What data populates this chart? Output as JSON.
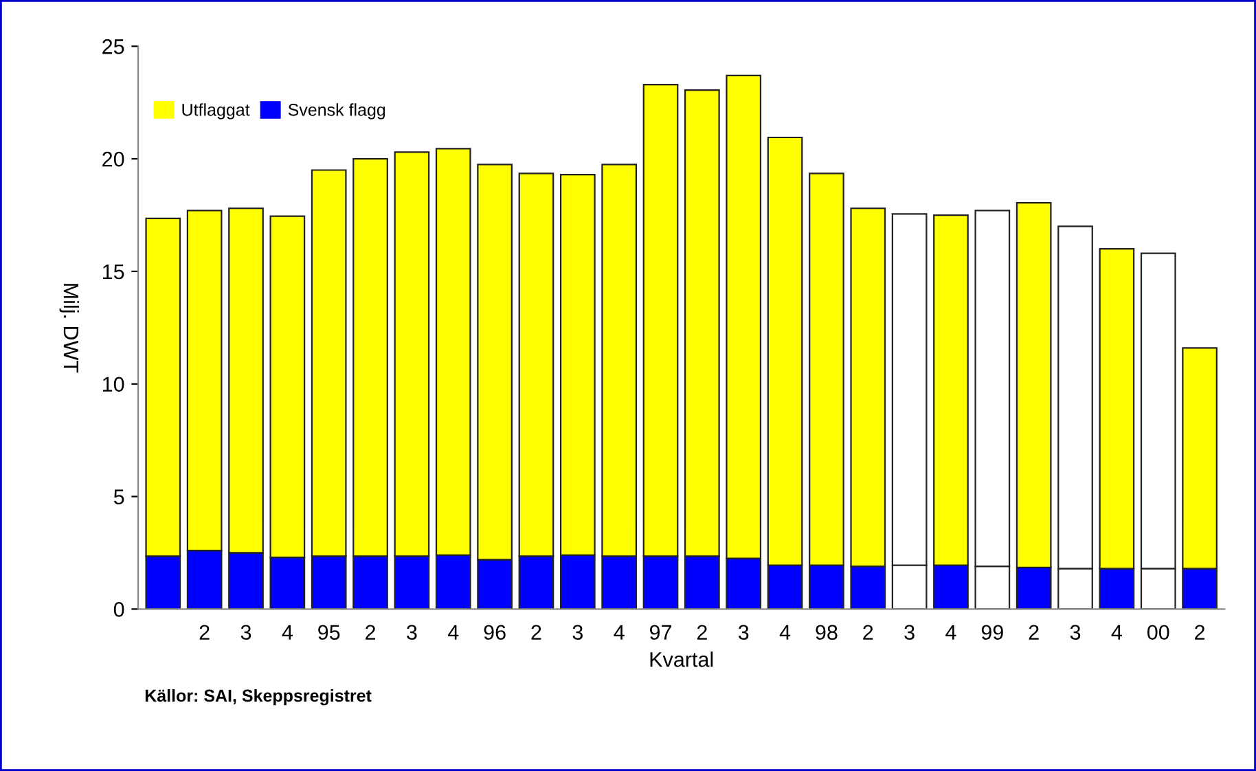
{
  "chart_data": {
    "type": "bar",
    "stacked": true,
    "xlabel": "Kvartal",
    "ylabel": "Milj. DWT",
    "categories": [
      null,
      "2",
      "3",
      "4",
      "95",
      "2",
      "3",
      "4",
      "96",
      "2",
      "3",
      "4",
      "97",
      "2",
      "3",
      "4",
      "98",
      "2",
      "3",
      "4",
      "99",
      "2",
      "3",
      "4",
      "00",
      "2"
    ],
    "series": [
      {
        "name": "Svensk flagg",
        "color": "#0000ff",
        "colors": [
          "#0000ff",
          "#0000ff",
          "#0000ff",
          "#0000ff",
          "#0000ff",
          "#0000ff",
          "#0000ff",
          "#0000ff",
          "#0000ff",
          "#0000ff",
          "#0000ff",
          "#0000ff",
          "#0000ff",
          "#0000ff",
          "#0000ff",
          "#0000ff",
          "#0000ff",
          "#0000ff",
          "#ffffff",
          "#0000ff",
          "#ffffff",
          "#0000ff",
          "#ffffff",
          "#0000ff",
          "#ffffff",
          "#0000ff"
        ],
        "values": [
          2.35,
          2.6,
          2.5,
          2.3,
          2.35,
          2.35,
          2.35,
          2.4,
          2.2,
          2.35,
          2.4,
          2.35,
          2.35,
          2.35,
          2.25,
          1.95,
          1.95,
          1.9,
          1.95,
          1.95,
          1.9,
          1.85,
          1.8,
          1.8,
          1.8,
          1.8
        ]
      },
      {
        "name": "Utflaggat",
        "color": "#ffff00",
        "colors": [
          "#ffff00",
          "#ffff00",
          "#ffff00",
          "#ffff00",
          "#ffff00",
          "#ffff00",
          "#ffff00",
          "#ffff00",
          "#ffff00",
          "#ffff00",
          "#ffff00",
          "#ffff00",
          "#ffff00",
          "#ffff00",
          "#ffff00",
          "#ffff00",
          "#ffff00",
          "#ffff00",
          "#ffffff",
          "#ffff00",
          "#ffffff",
          "#ffff00",
          "#ffffff",
          "#ffff00",
          "#ffffff",
          "#ffff00"
        ],
        "values": [
          15.0,
          15.1,
          15.3,
          15.15,
          17.15,
          17.65,
          17.95,
          18.05,
          17.55,
          17.0,
          16.9,
          17.4,
          20.95,
          20.7,
          21.45,
          19.0,
          17.4,
          15.9,
          15.6,
          15.55,
          15.8,
          16.2,
          15.2,
          14.2,
          14.0,
          9.8
        ]
      }
    ],
    "ylim": [
      0,
      25
    ],
    "yticks": [
      0,
      5,
      10,
      15,
      20,
      25
    ],
    "grid": false,
    "legend": "top left",
    "annotations": [
      "Källor: SAI, Skeppsregistret"
    ]
  }
}
